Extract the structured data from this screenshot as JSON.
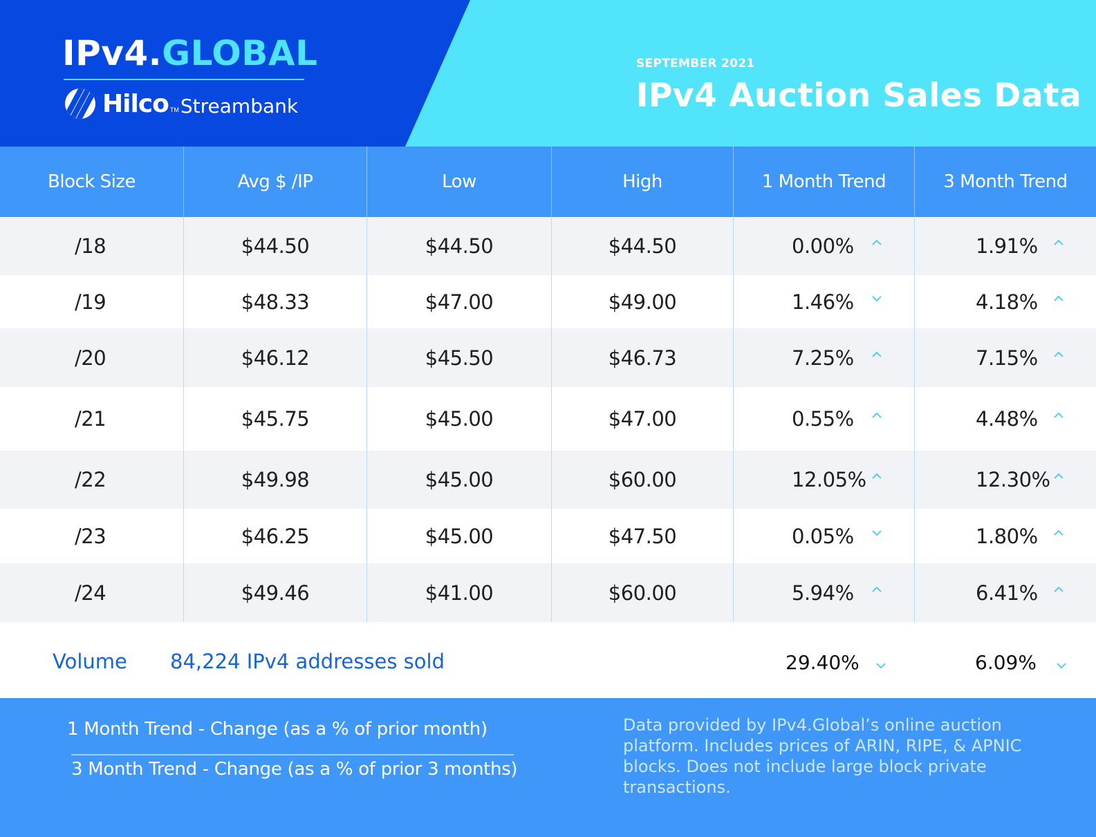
{
  "brand": {
    "ipv4": "IPv4.",
    "global": "GLOBAL",
    "hilco": "Hilco",
    "tm": "TM",
    "streambank": "Streambank"
  },
  "header": {
    "month": "SEPTEMBER 2021",
    "title": "IPv4 Auction Sales Data"
  },
  "table": {
    "columns": [
      "Block Size",
      "Avg $ /IP",
      "Low",
      "High",
      "1 Month Trend",
      "3 Month Trend"
    ],
    "rows": [
      {
        "block": "/18",
        "avg": "$44.50",
        "low": "$44.50",
        "high": "$44.50",
        "m1": "0.00%",
        "m1_dir": "up",
        "m3": "1.91%",
        "m3_dir": "up"
      },
      {
        "block": "/19",
        "avg": "$48.33",
        "low": "$47.00",
        "high": "$49.00",
        "m1": "1.46%",
        "m1_dir": "down",
        "m3": "4.18%",
        "m3_dir": "up"
      },
      {
        "block": "/20",
        "avg": "$46.12",
        "low": "$45.50",
        "high": "$46.73",
        "m1": "7.25%",
        "m1_dir": "up",
        "m3": "7.15%",
        "m3_dir": "up"
      },
      {
        "block": "/21",
        "avg": "$45.75",
        "low": "$45.00",
        "high": "$47.00",
        "m1": "0.55%",
        "m1_dir": "up",
        "m3": "4.48%",
        "m3_dir": "up"
      },
      {
        "block": "/22",
        "avg": "$49.98",
        "low": "$45.00",
        "high": "$60.00",
        "m1": "12.05%",
        "m1_dir": "up",
        "m3": "12.30%",
        "m3_dir": "up"
      },
      {
        "block": "/23",
        "avg": "$46.25",
        "low": "$45.00",
        "high": "$47.50",
        "m1": "0.05%",
        "m1_dir": "down",
        "m3": "1.80%",
        "m3_dir": "up"
      },
      {
        "block": "/24",
        "avg": "$49.46",
        "low": "$41.00",
        "high": "$60.00",
        "m1": "5.94%",
        "m1_dir": "up",
        "m3": "6.41%",
        "m3_dir": "up"
      }
    ]
  },
  "volume": {
    "label": "Volume",
    "value": "84,224 IPv4 addresses sold",
    "m1": "29.40%",
    "m1_dir": "down",
    "m3": "6.09%",
    "m3_dir": "down"
  },
  "footer": {
    "legend_1m": "1 Month Trend - Change (as a % of prior month)",
    "legend_3m": "3 Month Trend - Change (as a % of prior 3 months)",
    "note": "Data provided by IPv4.Global’s online auction platform. Includes prices of ARIN, RIPE, & APNIC blocks. Does not include large block private transactions."
  },
  "colors": {
    "header_dark": "#0749e0",
    "header_light": "#52e4fb",
    "table_header": "#3f97fa",
    "row_alt": "#f1f3f6",
    "trend_arrow": "#4fd0f2",
    "volume_text": "#1565d8"
  },
  "icons": {
    "up": "chevron-up-icon",
    "down": "chevron-down-icon"
  }
}
